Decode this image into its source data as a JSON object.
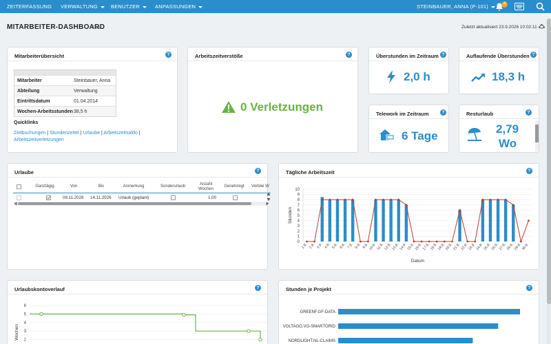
{
  "nav": {
    "items": [
      "ZEITERFASSUNG",
      "VERWALTUNG",
      "BENUTZER",
      "ANPASSUNGEN"
    ],
    "user": "STEINBAUER, ANNA (P-101)",
    "notifications": "4"
  },
  "header": {
    "title": "MITARBEITER-DASHBOARD",
    "filter": "Filter",
    "updated": "Zuletzt aktualisiert 23.9.2026 10:02:11"
  },
  "employee": {
    "title": "Mitarbeiterübersicht",
    "rows": [
      {
        "k": "Mitarbeiter",
        "v": "Steinbauer, Anna"
      },
      {
        "k": "Abteilung",
        "v": "Verwaltung"
      },
      {
        "k": "Eintrittsdatum",
        "v": "01.04.2014"
      },
      {
        "k": "Wochen-Arbeitsstunden",
        "v": "38,5 h"
      }
    ],
    "quicklinks_title": "Quicklinks",
    "quicklinks": [
      "Zeitbuchungen",
      "Stundenzettel",
      "Urlaube",
      "Arbeitszeitsaldo",
      "Arbeitszeitverletzungen"
    ]
  },
  "violations": {
    "title": "Arbeitszeitverstöße",
    "value": "0 Verletzungen",
    "color": "#6ab33e"
  },
  "overtime": {
    "title": "Überstunden im Zeitraum",
    "value": "2,0 h"
  },
  "accrued": {
    "title": "Auflaufende Überstunden",
    "value": "18,3 h"
  },
  "telework": {
    "title": "Telework im Zeitraum",
    "value": "6 Tage"
  },
  "vacation_left": {
    "title": "Resturlaub",
    "value1": "2,79",
    "value2": "Wo"
  },
  "vacations": {
    "title": "Urlaube",
    "columns": [
      "Ganztägig",
      "Von",
      "Bis",
      "Anmerkung",
      "Sonderurlaub",
      "Anzahl Wochen",
      "Genehmigt",
      "Verblei W"
    ],
    "row": {
      "von": "09.11.2026",
      "bis": "14.11.2026",
      "anmerkung": "Urlaub (geplant)",
      "wochen": "1,00"
    }
  },
  "daily": {
    "title": "Tägliche Arbeitszeit",
    "chart_data": {
      "type": "bar",
      "ylabel": "Stunden",
      "xlabel": "Datum",
      "ylim": [
        0,
        10
      ],
      "yticks": [
        0,
        1,
        2,
        3,
        4,
        5,
        6,
        7,
        8,
        9,
        10
      ],
      "categories": [
        "1.9.",
        "2.9.",
        "3.9.",
        "4.9.",
        "5.9.",
        "6.9.",
        "7.9.",
        "8.9.",
        "9.9.",
        "10.9.",
        "11.9.",
        "12.9.",
        "13.9.",
        "14.9.",
        "15.9.",
        "16.9.",
        "17.9.",
        "18.9.",
        "19.9.",
        "20.9.",
        "21.9.",
        "22.9.",
        "23.9.",
        "24.9.",
        "25.9.",
        "26.9.",
        "27.9.",
        "28.9.",
        "29.9.",
        "30.9."
      ],
      "series": [
        {
          "values": [
            0,
            0,
            8.5,
            8,
            8,
            8,
            8,
            0,
            0,
            8,
            8,
            8,
            8,
            7,
            0,
            0,
            0,
            0,
            0,
            0,
            6,
            0,
            0,
            8,
            8,
            8,
            8,
            7,
            0,
            0
          ],
          "color": "#2a8dcc"
        },
        {
          "values": [
            0,
            0,
            8,
            8,
            8,
            8,
            8,
            0,
            0,
            8,
            8,
            8,
            8,
            7,
            0,
            0,
            0,
            0,
            0,
            0,
            6,
            0,
            0,
            8,
            8,
            8,
            8,
            7,
            0,
            4
          ],
          "color": "#c0392b"
        }
      ]
    }
  },
  "vacation_balance": {
    "title": "Urlaubskontoverlauf",
    "chart_data": {
      "type": "line",
      "ylabel": "Wochen",
      "ylim": [
        1,
        6
      ],
      "yticks": [
        2,
        3,
        4,
        5,
        6
      ],
      "series": [
        {
          "values": [
            5,
            5,
            5,
            4.9,
            3,
            3,
            2
          ],
          "color": "#6ab33e"
        }
      ]
    }
  },
  "projects": {
    "title": "Stunden je Projekt",
    "chart_data": {
      "type": "bar",
      "orientation": "horizontal",
      "categories": [
        "GREENF.GF-DATA",
        "VOLTAGO.VO-SMARTGRID",
        "NORDLIGHT.NL-CLAIMS"
      ],
      "values": [
        100,
        88,
        74
      ],
      "color": "#2a8dcc"
    }
  }
}
